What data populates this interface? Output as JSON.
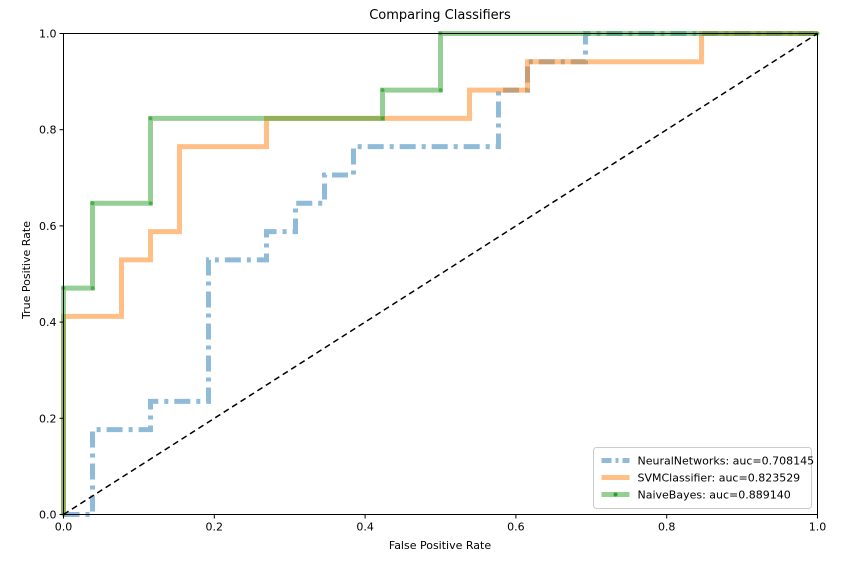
{
  "chart_data": {
    "type": "line",
    "title": "Comparing Classifiers",
    "xlabel": "False Positive Rate",
    "ylabel": "True Positive Rate",
    "xlim": [
      0.0,
      1.0
    ],
    "ylim": [
      0.0,
      1.0
    ],
    "xticks": [
      "0.0",
      "0.2",
      "0.4",
      "0.6",
      "0.8",
      "1.0"
    ],
    "yticks": [
      "0.0",
      "0.2",
      "0.4",
      "0.6",
      "0.8",
      "1.0"
    ],
    "grid": false,
    "legend_position": "lower-right",
    "series": [
      {
        "name": "NeuralNetworks: auc=0.708145",
        "color": "#1f77b4",
        "style": "dashdot",
        "x": [
          0.0,
          0.0385,
          0.0385,
          0.1154,
          0.1154,
          0.1923,
          0.1923,
          0.2692,
          0.2692,
          0.3077,
          0.3077,
          0.3462,
          0.3462,
          0.3846,
          0.3846,
          0.5769,
          0.5769,
          0.6154,
          0.6154,
          0.6923,
          0.6923,
          1.0
        ],
        "y": [
          0.0,
          0.0,
          0.1765,
          0.1765,
          0.2353,
          0.2353,
          0.5294,
          0.5294,
          0.5882,
          0.5882,
          0.6471,
          0.6471,
          0.7059,
          0.7059,
          0.7647,
          0.7647,
          0.8824,
          0.8824,
          0.9412,
          0.9412,
          1.0,
          1.0
        ]
      },
      {
        "name": "SVMClassifier: auc=0.823529",
        "color": "#ff7f0e",
        "style": "solid",
        "x": [
          0.0,
          0.0,
          0.0769,
          0.0769,
          0.1154,
          0.1154,
          0.1538,
          0.1538,
          0.2692,
          0.2692,
          0.5385,
          0.5385,
          0.6154,
          0.6154,
          0.8462,
          0.8462,
          1.0
        ],
        "y": [
          0.0,
          0.4118,
          0.4118,
          0.5294,
          0.5294,
          0.5882,
          0.5882,
          0.7647,
          0.7647,
          0.8235,
          0.8235,
          0.8824,
          0.8824,
          0.9412,
          0.9412,
          1.0,
          1.0
        ]
      },
      {
        "name": "NaiveBayes: auc=0.889140",
        "color": "#2ca02c",
        "style": "solid-marker",
        "x": [
          0.0,
          0.0,
          0.0385,
          0.0385,
          0.1154,
          0.1154,
          0.4231,
          0.4231,
          0.5,
          0.5,
          1.0
        ],
        "y": [
          0.0,
          0.4706,
          0.4706,
          0.6471,
          0.6471,
          0.8235,
          0.8235,
          0.8824,
          0.8824,
          1.0,
          1.0
        ]
      },
      {
        "name": "",
        "color": "#000000",
        "style": "dashed",
        "x": [
          0.0,
          1.0
        ],
        "y": [
          0.0,
          1.0
        ]
      }
    ]
  }
}
